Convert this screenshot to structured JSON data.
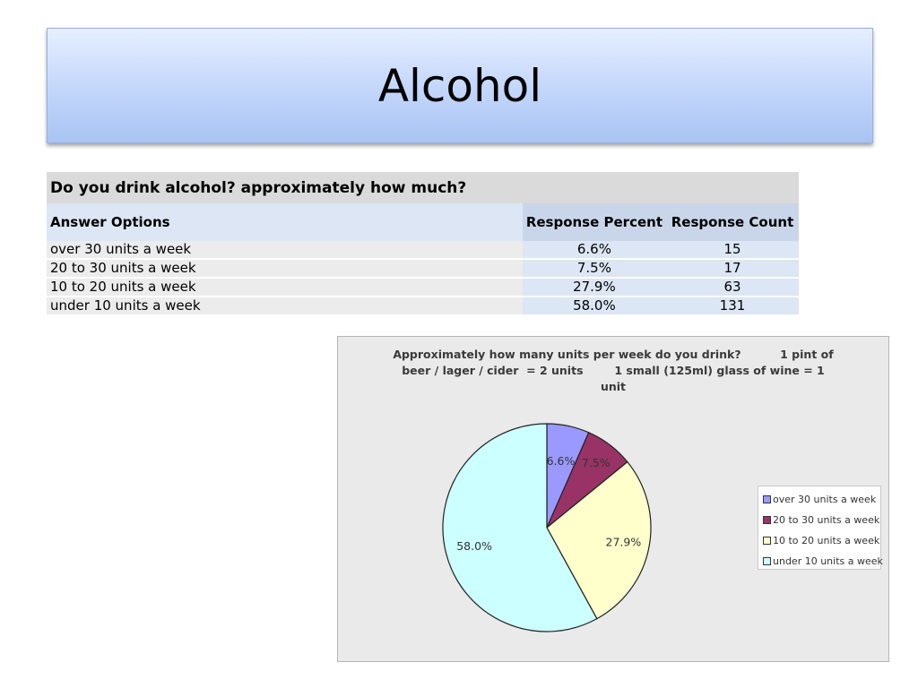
{
  "slide": {
    "title": "Alcohol"
  },
  "table": {
    "question": "Do you drink alcohol? approximately how much?",
    "headers": {
      "option": "Answer Options",
      "percent": "Response Percent",
      "count": "Response Count"
    },
    "rows": [
      {
        "option": "over 30 units a week",
        "percent": "6.6%",
        "count": "15"
      },
      {
        "option": "20 to 30 units a week",
        "percent": "7.5%",
        "count": "17"
      },
      {
        "option": "10 to 20 units a week",
        "percent": "27.9%",
        "count": "63"
      },
      {
        "option": "under 10 units a week",
        "percent": "58.0%",
        "count": "131"
      }
    ]
  },
  "chart_data": {
    "type": "pie",
    "title": "Approximately how many units per week do you drink?          1 pint of beer / lager / cider  = 2 units        1 small (125ml) glass of wine = 1 unit",
    "categories": [
      "over 30 units a week",
      "20 to 30 units a week",
      "10 to 20 units a week",
      "under 10 units a week"
    ],
    "values": [
      6.6,
      7.5,
      27.9,
      58.0
    ],
    "data_labels": [
      "6.6%",
      "7.5%",
      "27.9%",
      "58.0%"
    ],
    "colors": [
      "#9999ff",
      "#993366",
      "#ffffcc",
      "#ccffff"
    ],
    "legend_position": "right",
    "background": "#eaeaea"
  }
}
